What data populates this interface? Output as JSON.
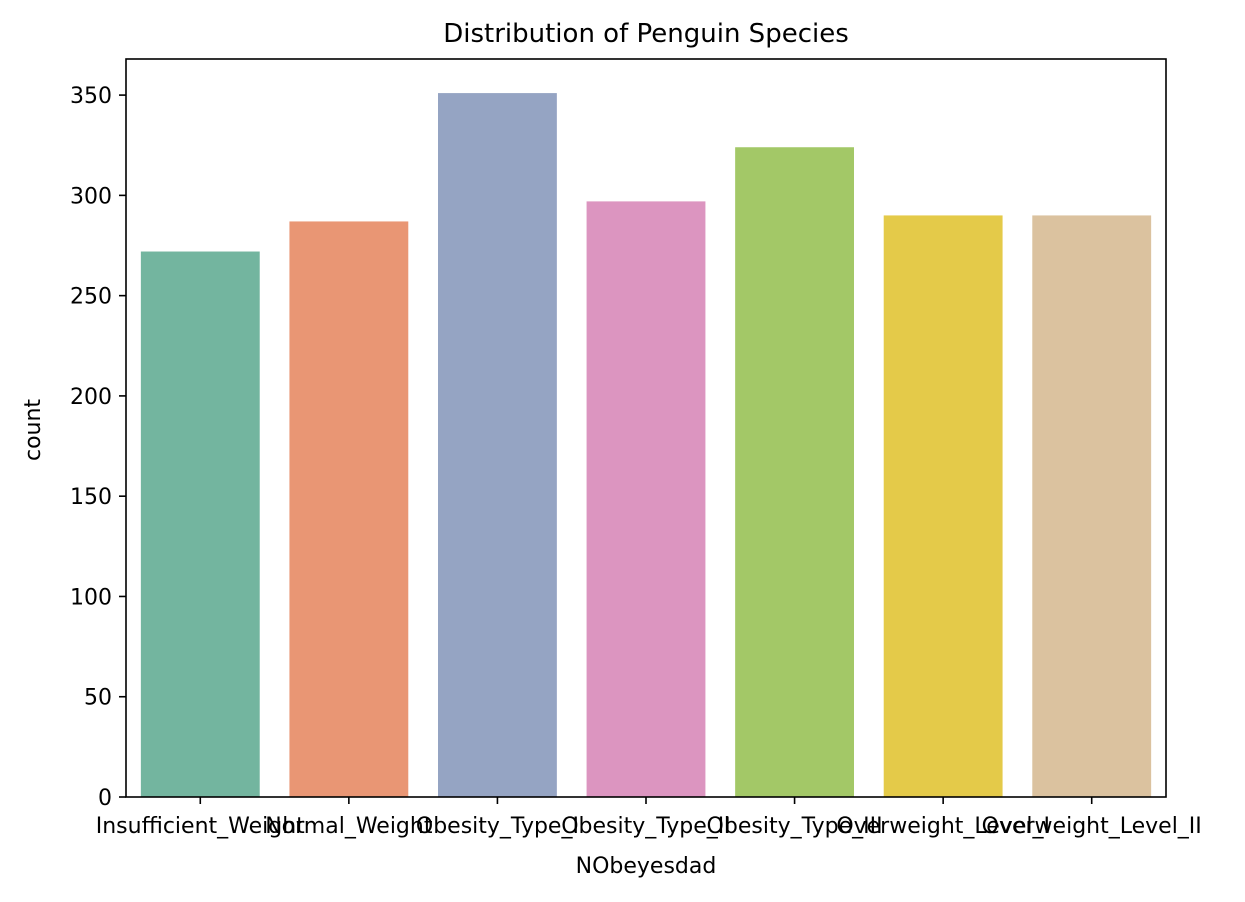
{
  "chart_data": {
    "type": "bar",
    "title": "Distribution of Penguin Species",
    "xlabel": "NObeyesdad",
    "ylabel": "count",
    "categories": [
      "Insufficient_Weight",
      "Normal_Weight",
      "Obesity_Type_I",
      "Obesity_Type_II",
      "Obesity_Type_III",
      "Overweight_Level_I",
      "Overweight_Level_II"
    ],
    "values": [
      272,
      287,
      351,
      297,
      324,
      290,
      290
    ],
    "colors": [
      "#73b59f",
      "#e99674",
      "#95a4c3",
      "#dc95c0",
      "#a3c867",
      "#e4ca49",
      "#dbc29f"
    ],
    "ylim": [
      0,
      368
    ],
    "yticks": [
      0,
      50,
      100,
      150,
      200,
      250,
      300,
      350
    ],
    "grid": false,
    "legend": "none"
  }
}
